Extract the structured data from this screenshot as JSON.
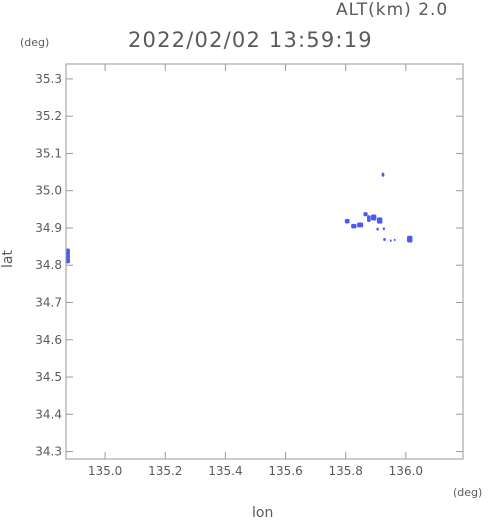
{
  "header": {
    "altitude_label": "ALT(km) 2.0",
    "timestamp": "2022/02/02 13:59:19"
  },
  "colors": {
    "echo": "#4b5bee",
    "frame": "#9a9a9a",
    "text": "#5a5a5a"
  },
  "chart_data": {
    "type": "scatter",
    "xlabel": "lon",
    "ylabel": "lat",
    "xunit": "(deg)",
    "yunit": "(deg)",
    "xlim": [
      134.87,
      136.19
    ],
    "ylim": [
      34.28,
      35.34
    ],
    "xticks": [
      135.0,
      135.2,
      135.4,
      135.6,
      135.8,
      136.0
    ],
    "xtick_labels": [
      "135.0",
      "135.2",
      "135.4",
      "135.6",
      "135.8",
      "136.0"
    ],
    "yticks": [
      34.3,
      34.4,
      34.5,
      34.6,
      34.7,
      34.8,
      34.9,
      35.0,
      35.1,
      35.2,
      35.3
    ],
    "ytick_labels": [
      "34.3",
      "34.4",
      "34.5",
      "34.6",
      "34.7",
      "34.8",
      "34.9",
      "35.0",
      "35.1",
      "35.2",
      "35.3"
    ],
    "grid": false,
    "series": [
      {
        "points": [
          {
            "lon": 134.876,
            "lat": 34.825,
            "w": 0.014,
            "h": 0.04
          },
          {
            "lon": 135.924,
            "lat": 35.043,
            "w": 0.009,
            "h": 0.011
          },
          {
            "lon": 135.805,
            "lat": 34.918,
            "w": 0.016,
            "h": 0.012
          },
          {
            "lon": 135.827,
            "lat": 34.905,
            "w": 0.018,
            "h": 0.012
          },
          {
            "lon": 135.848,
            "lat": 34.908,
            "w": 0.02,
            "h": 0.013
          },
          {
            "lon": 135.866,
            "lat": 34.937,
            "w": 0.014,
            "h": 0.011
          },
          {
            "lon": 135.877,
            "lat": 34.925,
            "w": 0.012,
            "h": 0.018
          },
          {
            "lon": 135.893,
            "lat": 34.928,
            "w": 0.018,
            "h": 0.016
          },
          {
            "lon": 135.913,
            "lat": 34.92,
            "w": 0.018,
            "h": 0.017
          },
          {
            "lon": 135.906,
            "lat": 34.897,
            "w": 0.008,
            "h": 0.008
          },
          {
            "lon": 135.927,
            "lat": 34.898,
            "w": 0.007,
            "h": 0.008
          },
          {
            "lon": 135.929,
            "lat": 34.869,
            "w": 0.009,
            "h": 0.008
          },
          {
            "lon": 135.95,
            "lat": 34.866,
            "w": 0.006,
            "h": 0.007
          },
          {
            "lon": 135.963,
            "lat": 34.868,
            "w": 0.006,
            "h": 0.007
          },
          {
            "lon": 136.013,
            "lat": 34.87,
            "w": 0.018,
            "h": 0.018
          }
        ]
      }
    ]
  }
}
